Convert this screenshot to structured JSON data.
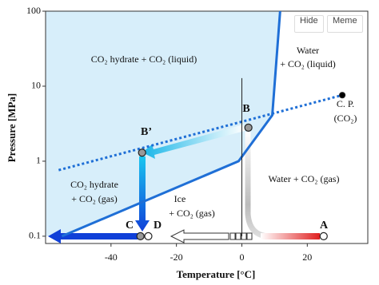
{
  "chart_data": {
    "type": "line",
    "x_label": "Temperature   [°C]",
    "y_label": "Pressure  [MPa]",
    "xlim": [
      -60,
      38.5
    ],
    "ylim": [
      0.08,
      100
    ],
    "log_y": true,
    "xticks": [
      -40,
      -20,
      0,
      20
    ],
    "yticks": [
      0.1,
      1,
      10,
      100
    ],
    "series": [
      {
        "color": "#1f6fd6",
        "style": "solid",
        "width": 3,
        "fill": "#d7eefa",
        "x": [
          -55,
          -1,
          9.3,
          11.7
        ],
        "values": [
          0.1,
          1,
          4.1,
          100
        ]
      },
      {
        "color": "#1f6fd6",
        "style": "dotted",
        "width": 3,
        "x": [
          -56,
          30.7
        ],
        "values": [
          0.76,
          7.6
        ]
      },
      {
        "color": "#222222",
        "style": "solid",
        "width": 1,
        "x": [
          0,
          0
        ],
        "values": [
          0.1,
          12.8
        ]
      }
    ],
    "points": [
      {
        "label": "A",
        "x": 25,
        "y": 0.1,
        "style": "open"
      },
      {
        "label": "B",
        "x": 2,
        "y": 2.8,
        "style": "filled"
      },
      {
        "label": "B’",
        "x": -30.5,
        "y": 1.3,
        "style": "filled"
      },
      {
        "label": "C",
        "x": -31,
        "y": 0.1,
        "style": "filled"
      },
      {
        "label": "D",
        "x": -28.6,
        "y": 0.1,
        "style": "open"
      },
      {
        "label": "C. P.",
        "x": 30.7,
        "y": 7.6,
        "style": "dot"
      }
    ],
    "annotations": [
      "CO₂ hydrate + CO₂ (liquid)",
      "Water",
      "+ CO₂ (liquid)",
      "(CO₂)",
      "CO₂ hydrate",
      "+ CO₂ (gas)",
      "Ice",
      "+ CO₂ (gas)",
      "Water + CO₂ (gas)"
    ]
  },
  "ui": {
    "buttons": [
      "Hide",
      "Meme"
    ]
  }
}
